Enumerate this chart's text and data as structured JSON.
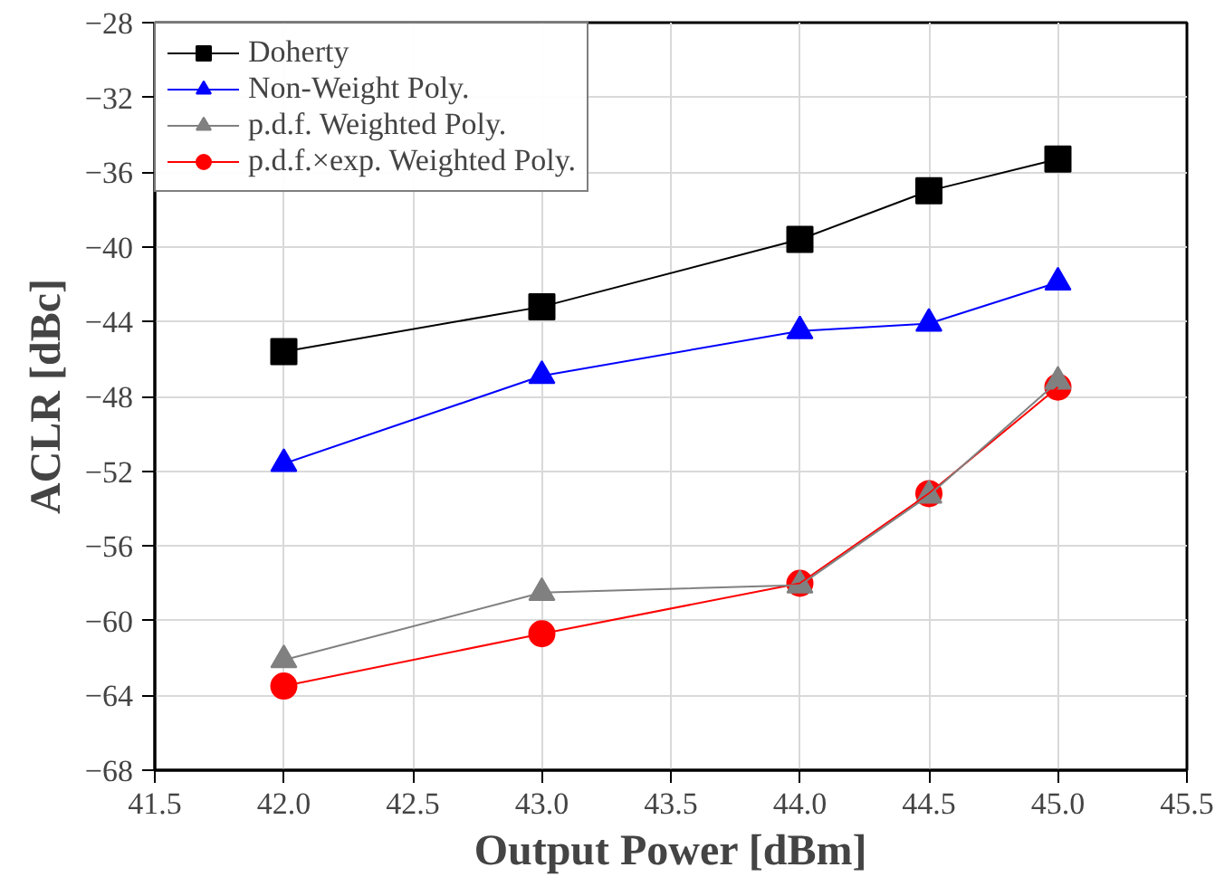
{
  "chart_data": {
    "type": "line",
    "xlabel": "Output Power [dBm]",
    "ylabel": "ACLR [dBc]",
    "x": [
      42.0,
      43.0,
      44.0,
      44.5,
      45.0
    ],
    "series": [
      {
        "name": "Doherty",
        "color": "#000000",
        "marker": "square",
        "values": [
          -45.6,
          -43.2,
          -39.6,
          -37.0,
          -35.3
        ]
      },
      {
        "name": "Non-Weight Poly.",
        "color": "#0000ff",
        "marker": "triangle",
        "values": [
          -51.6,
          -46.9,
          -44.5,
          -44.1,
          -41.9
        ]
      },
      {
        "name": "p.d.f. Weighted Poly.",
        "color": "#808080",
        "marker": "triangle",
        "values": [
          -62.1,
          -58.5,
          -58.1,
          -53.3,
          -47.2
        ]
      },
      {
        "name": "p.d.f.×exp. Weighted Poly.",
        "color": "#ff0000",
        "marker": "circle",
        "values": [
          -63.5,
          -60.7,
          -58.0,
          -53.2,
          -47.5
        ]
      }
    ],
    "xlim": [
      41.5,
      45.5
    ],
    "xticks": [
      {
        "value": 41.5,
        "label": "41.5"
      },
      {
        "value": 42,
        "label": "42.0"
      },
      {
        "value": 42.5,
        "label": "42.5"
      },
      {
        "value": 43,
        "label": "43.0"
      },
      {
        "value": 43.5,
        "label": "43.5"
      },
      {
        "value": 44,
        "label": "44.0"
      },
      {
        "value": 44.5,
        "label": "44.5"
      },
      {
        "value": 45,
        "label": "45.0"
      },
      {
        "value": 45.5,
        "label": "45.5"
      }
    ],
    "ylim": [
      -68,
      -28
    ],
    "yticks": [
      -68,
      -64,
      -60,
      -56,
      -52,
      -48,
      -44,
      -40,
      -36,
      -32,
      -28
    ],
    "grid": true,
    "legend": "top left",
    "line_style": "solid"
  }
}
